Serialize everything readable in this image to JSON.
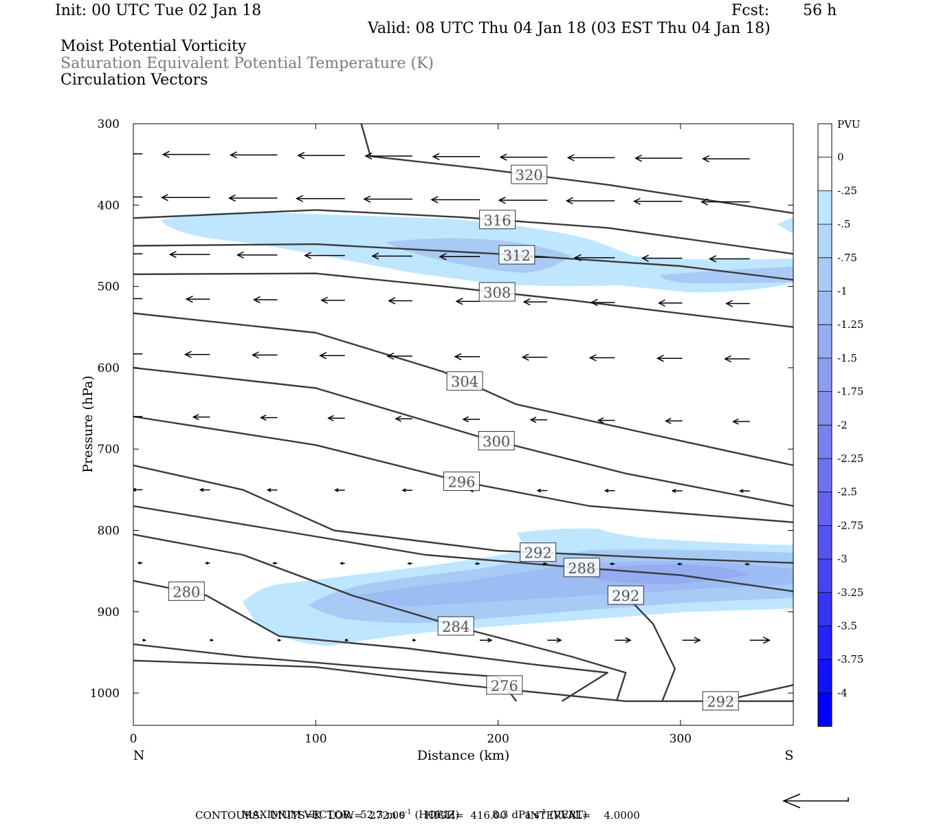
{
  "header": {
    "init": "Init: 00 UTC Tue 02 Jan 18",
    "fcst_label": "Fcst:",
    "fcst_value": "56 h",
    "valid": "Valid: 08 UTC Thu 04 Jan 18 (03 EST Thu 04 Jan 18)",
    "field1": "Moist Potential Vorticity",
    "field2": "Saturation Equivalent Potential Temperature (K)",
    "field3": "Circulation Vectors"
  },
  "footer": {
    "max_vector_label": "MAXIMUM VECTOR:",
    "horiz_value": "52.3 m s",
    "horiz_exp": "-1",
    "horiz_tag": "(HORIZ)",
    "vert_value": "8.3 dPa s",
    "vert_exp": "-1",
    "vert_tag": "(VERT)",
    "contours": "CONTOURS:  UNITS=K  LOW=  272.00      HIGH=  416.00      INTERVAL=    4.0000"
  },
  "chart_data": {
    "type": "contour",
    "xlabel": "Distance (km)",
    "ylabel": "Pressure (hPa)",
    "xlim": [
      0,
      362
    ],
    "ylim": [
      300,
      1040
    ],
    "x_ticks": [
      0,
      100,
      200,
      300
    ],
    "y_ticks": [
      300,
      400,
      500,
      600,
      700,
      800,
      900,
      1000
    ],
    "x_end_labels": {
      "left": "N",
      "right": "S"
    },
    "colorbar": {
      "title": "PVU",
      "ticks": [
        "0",
        "-.25",
        "-.5",
        "-.75",
        "-1",
        "-1.25",
        "-1.5",
        "-1.75",
        "-2",
        "-2.25",
        "-2.5",
        "-2.75",
        "-3",
        "-3.25",
        "-3.5",
        "-3.75",
        "-4"
      ],
      "colors": [
        "#ffffff",
        "#ffffff",
        "#bfe6ff",
        "#b3d9fa",
        "#a8cbf6",
        "#9ebcf4",
        "#94adf2",
        "#8b9ef0",
        "#8290ee",
        "#7881ee",
        "#6e72ee",
        "#6363ef",
        "#5554f0",
        "#4645f2",
        "#3535f5",
        "#2424f8",
        "#1212fb",
        "#0000ff"
      ]
    },
    "theta_es_contours": [
      {
        "label": "320",
        "points": [
          [
            125,
            300
          ],
          [
            130,
            340
          ],
          [
            190,
            355
          ],
          [
            260,
            375
          ],
          [
            362,
            410
          ]
        ]
      },
      {
        "label": "316",
        "points": [
          [
            0,
            416
          ],
          [
            100,
            406
          ],
          [
            180,
            415
          ],
          [
            260,
            428
          ],
          [
            362,
            460
          ]
        ]
      },
      {
        "label": "312",
        "points": [
          [
            0,
            450
          ],
          [
            100,
            448
          ],
          [
            200,
            460
          ],
          [
            300,
            475
          ],
          [
            362,
            492
          ]
        ]
      },
      {
        "label": "308",
        "points": [
          [
            0,
            485
          ],
          [
            100,
            484
          ],
          [
            170,
            500
          ],
          [
            240,
            517
          ],
          [
            362,
            550
          ]
        ]
      },
      {
        "label": "304",
        "points": [
          [
            0,
            533
          ],
          [
            100,
            557
          ],
          [
            170,
            605
          ],
          [
            210,
            645
          ],
          [
            280,
            680
          ],
          [
            362,
            720
          ]
        ]
      },
      {
        "label": "300",
        "points": [
          [
            0,
            600
          ],
          [
            100,
            625
          ],
          [
            190,
            685
          ],
          [
            270,
            730
          ],
          [
            362,
            770
          ]
        ]
      },
      {
        "label": "296",
        "points": [
          [
            0,
            660
          ],
          [
            100,
            695
          ],
          [
            180,
            740
          ],
          [
            250,
            770
          ],
          [
            362,
            790
          ]
        ]
      },
      {
        "label": "292",
        "points": [
          [
            0,
            720
          ],
          [
            60,
            750
          ],
          [
            110,
            800
          ],
          [
            200,
            825
          ],
          [
            300,
            835
          ],
          [
            362,
            840
          ]
        ]
      },
      {
        "label": "288",
        "points": [
          [
            0,
            770
          ],
          [
            80,
            800
          ],
          [
            160,
            830
          ],
          [
            240,
            845
          ],
          [
            300,
            855
          ],
          [
            362,
            875
          ]
        ]
      },
      {
        "label": "284",
        "points": [
          [
            0,
            805
          ],
          [
            60,
            830
          ],
          [
            120,
            880
          ],
          [
            180,
            920
          ],
          [
            240,
            955
          ],
          [
            270,
            975
          ],
          [
            265,
            1010
          ]
        ]
      },
      {
        "label": "280",
        "points": [
          [
            0,
            862
          ],
          [
            40,
            880
          ],
          [
            80,
            930
          ],
          [
            150,
            945
          ],
          [
            220,
            965
          ],
          [
            260,
            975
          ],
          [
            235,
            1010
          ]
        ]
      },
      {
        "label": "276",
        "points": [
          [
            0,
            940
          ],
          [
            60,
            955
          ],
          [
            140,
            970
          ],
          [
            200,
            980
          ],
          [
            210,
            1010
          ]
        ]
      },
      {
        "label": "292",
        "points": [
          [
            270,
            880
          ],
          [
            285,
            915
          ],
          [
            297,
            970
          ],
          [
            290,
            1010
          ]
        ]
      },
      {
        "label": "292",
        "points": [
          [
            322,
            1010
          ],
          [
            362,
            990
          ]
        ]
      },
      {
        "label": "",
        "points": [
          [
            0,
            960
          ],
          [
            100,
            968
          ],
          [
            180,
            990
          ],
          [
            270,
            1010
          ],
          [
            362,
            1010
          ]
        ]
      }
    ],
    "circulation_vectors_note": "Arrows point mainly westward (leftward, N-ward) aloft, weakening downward; near-surface arrows point eastward (rightward) in the southern half."
  }
}
